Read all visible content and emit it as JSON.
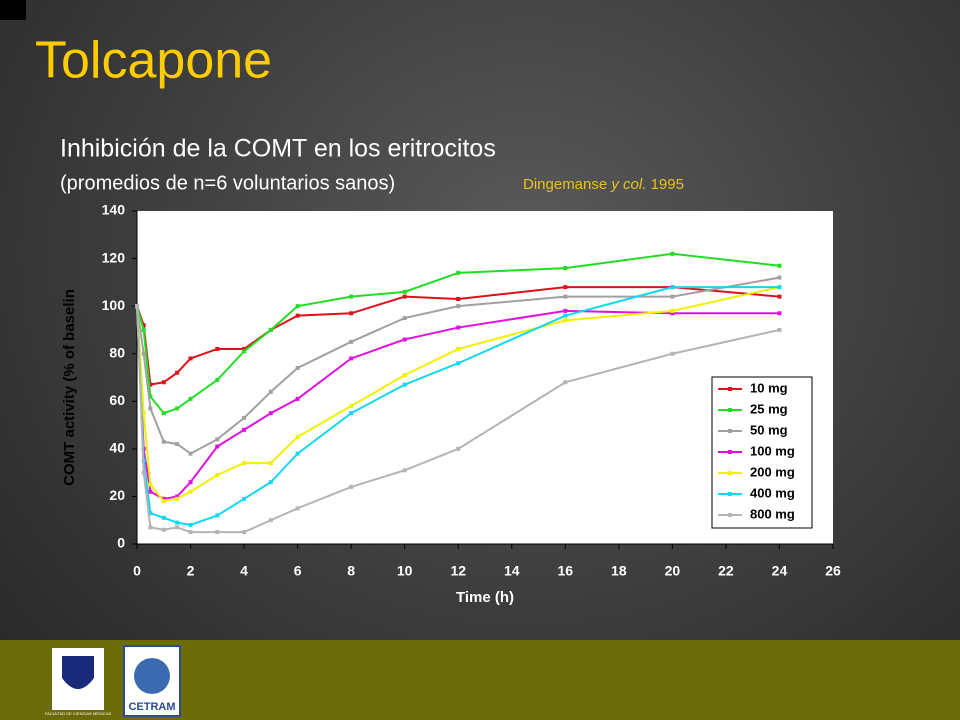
{
  "slide_title": "Tolcapone",
  "subtitle": "Inhibición de la COMT en los eritrocitos",
  "subtitle2": "(promedios de n=6 voluntarios sanos)",
  "citation": {
    "author": "Dingemanse",
    "etal": "y col.",
    "year": "1995"
  },
  "logos": {
    "left": "FACULTAD DE CIENCIAS MÉDICAS",
    "right": "CETRAM"
  },
  "chart_data": {
    "type": "line",
    "x_label": "Time (h)",
    "y_label": "COMT activity (% of baselin",
    "x": [
      0,
      0.25,
      0.5,
      1,
      1.5,
      2,
      3,
      4,
      5,
      6,
      8,
      10,
      12,
      16,
      20,
      24
    ],
    "xlim": [
      0,
      26
    ],
    "xticks": [
      0,
      2,
      4,
      6,
      8,
      10,
      12,
      14,
      16,
      18,
      20,
      22,
      24,
      26
    ],
    "ylim": [
      0,
      140
    ],
    "yticks": [
      0,
      20,
      40,
      60,
      80,
      100,
      120,
      140
    ],
    "legend": "right",
    "series": [
      {
        "name": "10 mg",
        "color": "#e0101a",
        "values": [
          100,
          92,
          67,
          68,
          72,
          78,
          82,
          82,
          90,
          96,
          97,
          104,
          103,
          108,
          108,
          104
        ]
      },
      {
        "name": "25 mg",
        "color": "#22dd22",
        "values": [
          100,
          90,
          62,
          55,
          57,
          61,
          69,
          81,
          90,
          100,
          104,
          106,
          114,
          116,
          122,
          117
        ]
      },
      {
        "name": "50 mg",
        "color": "#a0a0a0",
        "values": [
          100,
          80,
          57,
          43,
          42,
          38,
          44,
          53,
          64,
          74,
          85,
          95,
          100,
          104,
          104,
          112
        ]
      },
      {
        "name": "100 mg",
        "color": "#e010e0",
        "values": [
          100,
          40,
          22,
          19,
          20,
          26,
          41,
          48,
          55,
          61,
          78,
          86,
          91,
          98,
          97,
          97
        ]
      },
      {
        "name": "200 mg",
        "color": "#f0f000",
        "values": [
          100,
          55,
          25,
          18,
          19,
          22,
          29,
          34,
          34,
          45,
          58,
          71,
          82,
          94,
          98,
          108
        ]
      },
      {
        "name": "400 mg",
        "color": "#10d8f0",
        "values": [
          100,
          35,
          13,
          11,
          9,
          8,
          12,
          19,
          26,
          38,
          55,
          67,
          76,
          96,
          108,
          108
        ]
      },
      {
        "name": "800 mg",
        "color": "#b4b4b4",
        "values": [
          100,
          30,
          7,
          6,
          7,
          5,
          5,
          5,
          10,
          15,
          24,
          31,
          40,
          68,
          80,
          90
        ]
      }
    ]
  }
}
